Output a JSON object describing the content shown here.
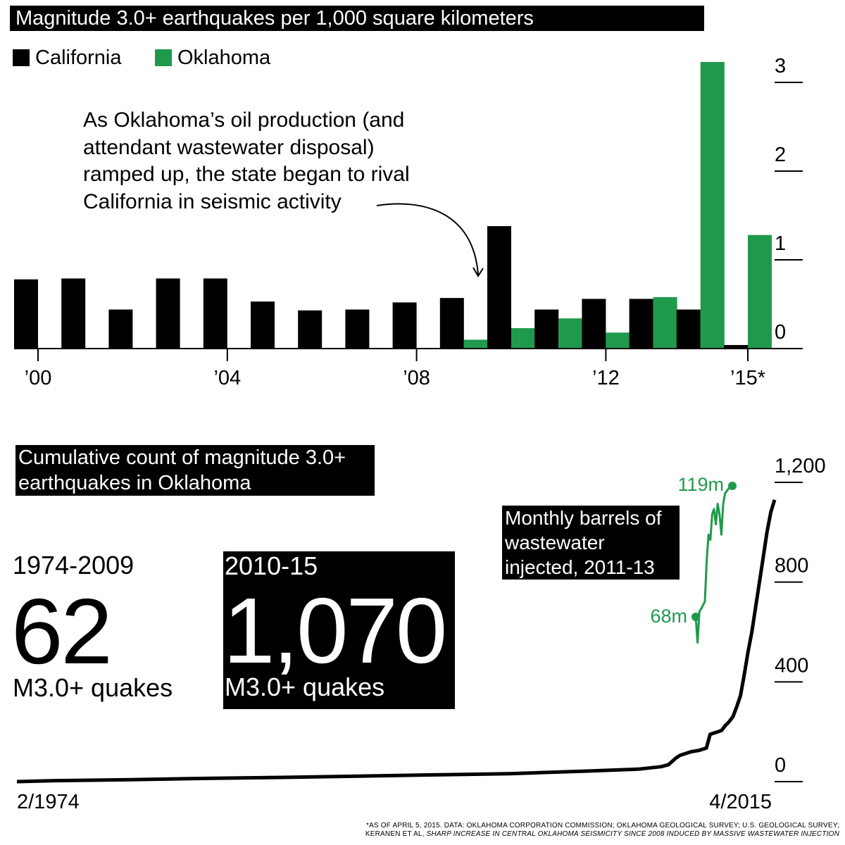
{
  "colors": {
    "california": "#000000",
    "oklahoma": "#1f9a4b",
    "background": "#ffffff"
  },
  "chart_data": [
    {
      "type": "bar",
      "title": "Magnitude 3.0+ earthquakes per 1,000 square kilometers",
      "categories": [
        "2000",
        "2001",
        "2002",
        "2003",
        "2004",
        "2005",
        "2006",
        "2007",
        "2008",
        "2009",
        "2010",
        "2011",
        "2012",
        "2013",
        "2014",
        "2015*"
      ],
      "x_tick_labels": [
        "’00",
        "’04",
        "’08",
        "’12",
        "’15*"
      ],
      "x_tick_years": [
        "2000",
        "2004",
        "2008",
        "2012",
        "2015*"
      ],
      "series": [
        {
          "name": "California",
          "color": "#000000",
          "values": [
            0.78,
            0.79,
            0.44,
            0.79,
            0.79,
            0.53,
            0.43,
            0.44,
            0.52,
            0.57,
            1.38,
            0.44,
            0.56,
            0.56,
            0.44,
            0.04
          ]
        },
        {
          "name": "Oklahoma",
          "color": "#1f9a4b",
          "values": [
            0,
            0,
            0,
            0,
            0,
            0,
            0,
            0,
            0,
            0.1,
            0.23,
            0.34,
            0.18,
            0.58,
            3.23,
            1.28
          ]
        }
      ],
      "ylim": [
        0,
        3.2
      ],
      "y_ticks": [
        "0",
        "1",
        "2",
        "3"
      ],
      "legend": "top-left",
      "annotation": "As Oklahoma’s oil production (and attendant wastewater disposal) ramped up, the state began to rival California in seismic activity"
    },
    {
      "type": "line",
      "title": "Cumulative count of magnitude 3.0+ earthquakes in Oklahoma",
      "x_start_label": "2/1974",
      "x_end_label": "4/2015",
      "y_ticks": [
        "0",
        "400",
        "800",
        "1,200"
      ],
      "ylim": [
        0,
        1200
      ],
      "points": [
        [
          0,
          0
        ],
        [
          0.05,
          4
        ],
        [
          0.15,
          8
        ],
        [
          0.25,
          13
        ],
        [
          0.35,
          17
        ],
        [
          0.45,
          22
        ],
        [
          0.55,
          27
        ],
        [
          0.65,
          32
        ],
        [
          0.75,
          42
        ],
        [
          0.82,
          50
        ],
        [
          0.85,
          60
        ],
        [
          0.86,
          68
        ],
        [
          0.87,
          95
        ],
        [
          0.875,
          105
        ],
        [
          0.89,
          120
        ],
        [
          0.9,
          125
        ],
        [
          0.91,
          135
        ],
        [
          0.915,
          190
        ],
        [
          0.925,
          200
        ],
        [
          0.93,
          205
        ],
        [
          0.935,
          225
        ],
        [
          0.94,
          240
        ],
        [
          0.945,
          260
        ],
        [
          0.95,
          300
        ],
        [
          0.955,
          345
        ],
        [
          0.96,
          430
        ],
        [
          0.965,
          520
        ],
        [
          0.97,
          600
        ],
        [
          0.975,
          700
        ],
        [
          0.98,
          800
        ],
        [
          0.985,
          900
        ],
        [
          0.99,
          1000
        ],
        [
          0.995,
          1080
        ],
        [
          1.0,
          1130
        ]
      ],
      "summary": [
        {
          "range": "1974-2009",
          "count": "62",
          "label": "M3.0+ quakes"
        },
        {
          "range": "2010-15",
          "count": "1,070",
          "label": "M3.0+ quakes"
        }
      ]
    },
    {
      "type": "line",
      "title": "Monthly barrels of wastewater injected, 2011-13",
      "color": "#1f9a4b",
      "start_label": "68m",
      "end_label": "119m",
      "start_value": 68,
      "end_value": 119,
      "points": [
        [
          0,
          68
        ],
        [
          0.05,
          58
        ],
        [
          0.1,
          70
        ],
        [
          0.18,
          72
        ],
        [
          0.25,
          74
        ],
        [
          0.3,
          90
        ],
        [
          0.35,
          100
        ],
        [
          0.4,
          98
        ],
        [
          0.45,
          108
        ],
        [
          0.5,
          110
        ],
        [
          0.55,
          104
        ],
        [
          0.6,
          112
        ],
        [
          0.65,
          108
        ],
        [
          0.7,
          100
        ],
        [
          0.75,
          112
        ],
        [
          0.8,
          116
        ],
        [
          0.9,
          118
        ],
        [
          1.0,
          119
        ]
      ]
    }
  ],
  "footnote": {
    "line1": "*AS OF APRIL 5, 2015. DATA: OKLAHOMA CORPORATION COMMISSION; OKLAHOMA GEOLOGICAL SURVEY; U.S. GEOLOGICAL SURVEY;",
    "line2_prefix": "KERANEN ET AL, ",
    "line2_italic": "SHARP INCREASE IN CENTRAL OKLAHOMA SEISMICITY SINCE 2008 INDUCED BY MASSIVE WASTEWATER INJECTION"
  }
}
